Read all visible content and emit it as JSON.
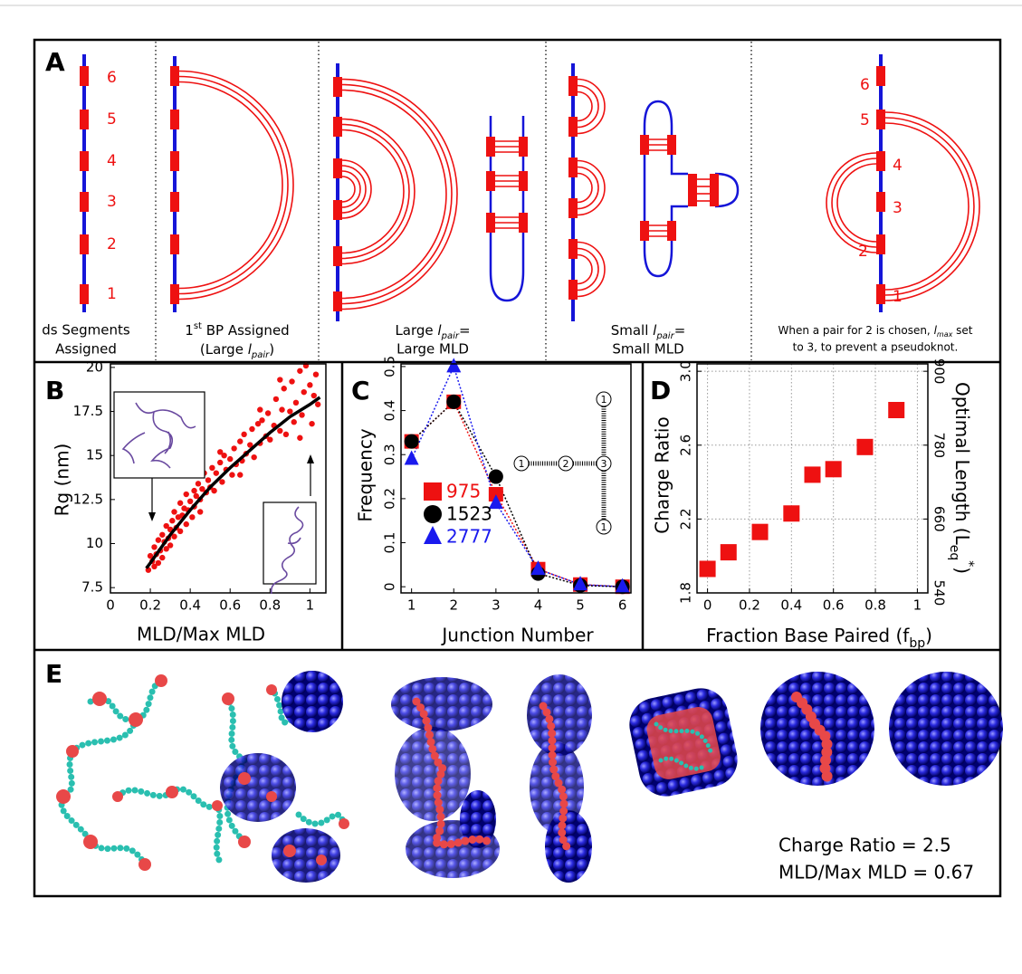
{
  "panel_a": {
    "label": "A",
    "segment_numbers": [
      "1",
      "2",
      "3",
      "4",
      "5",
      "6"
    ],
    "captions": [
      [
        "ds Segments",
        "Assigned"
      ],
      [
        [
          "1",
          "st",
          " BP Assigned"
        ],
        [
          "(Large ",
          "l",
          "pair",
          ")"
        ]
      ],
      [
        [
          "Large ",
          "l",
          "pair",
          "="
        ],
        "Large MLD"
      ],
      [
        [
          "Small ",
          "l",
          "pair",
          "="
        ],
        "Small MLD"
      ],
      [
        [
          "When a pair for 2 is chosen, ",
          "l",
          "max",
          " set"
        ],
        "to 3, to prevent a pseudoknot."
      ]
    ],
    "pseudoknot_numbers": [
      "1",
      "2",
      "3",
      "4",
      "5",
      "6"
    ]
  },
  "chart_data": [
    {
      "type": "scatter",
      "panel_label": "B",
      "xlabel": "MLD/Max MLD",
      "ylabel": "Rg (nm)",
      "xlim": [
        0,
        1.08
      ],
      "ylim": [
        7.2,
        20.2
      ],
      "xticks": [
        0,
        0.2,
        0.4,
        0.6,
        0.8,
        1
      ],
      "yticks": [
        7.5,
        10,
        12.5,
        15,
        17.5,
        20
      ],
      "series": [
        {
          "color": "#ee1111",
          "marker": "circle",
          "x": [
            0.19,
            0.2,
            0.21,
            0.22,
            0.22,
            0.23,
            0.24,
            0.24,
            0.25,
            0.26,
            0.26,
            0.27,
            0.28,
            0.28,
            0.29,
            0.3,
            0.3,
            0.31,
            0.32,
            0.32,
            0.33,
            0.34,
            0.35,
            0.35,
            0.36,
            0.37,
            0.38,
            0.38,
            0.39,
            0.4,
            0.41,
            0.42,
            0.42,
            0.43,
            0.44,
            0.45,
            0.46,
            0.47,
            0.48,
            0.49,
            0.5,
            0.51,
            0.52,
            0.53,
            0.55,
            0.56,
            0.57,
            0.58,
            0.6,
            0.61,
            0.62,
            0.63,
            0.65,
            0.66,
            0.67,
            0.68,
            0.7,
            0.71,
            0.72,
            0.74,
            0.75,
            0.76,
            0.78,
            0.79,
            0.8,
            0.82,
            0.83,
            0.85,
            0.86,
            0.87,
            0.88,
            0.9,
            0.91,
            0.92,
            0.93,
            0.95,
            0.96,
            0.97,
            0.98,
            1.0,
            1.01,
            1.02,
            1.03,
            1.04,
            0.45,
            0.55,
            0.65,
            0.75,
            0.85,
            0.95
          ],
          "values": [
            8.5,
            9.3,
            9.0,
            8.7,
            9.8,
            9.4,
            10.2,
            8.9,
            9.6,
            10.5,
            9.2,
            10.1,
            9.7,
            11.0,
            10.3,
            10.8,
            9.9,
            11.3,
            10.4,
            11.8,
            10.9,
            11.5,
            10.7,
            12.3,
            11.6,
            12.0,
            11.1,
            12.8,
            11.9,
            12.4,
            11.5,
            13.0,
            12.1,
            12.7,
            13.4,
            12.5,
            13.1,
            14.0,
            12.9,
            13.6,
            13.2,
            14.3,
            13.0,
            14.0,
            14.6,
            13.5,
            15.0,
            14.2,
            14.8,
            13.9,
            15.4,
            14.5,
            15.8,
            14.7,
            16.2,
            15.1,
            15.6,
            16.5,
            14.9,
            16.8,
            15.7,
            17.0,
            16.1,
            17.4,
            15.9,
            16.7,
            18.2,
            16.4,
            17.6,
            18.8,
            16.2,
            17.5,
            19.2,
            16.9,
            18.0,
            19.8,
            17.3,
            18.6,
            20.1,
            19.0,
            16.8,
            18.4,
            19.6,
            17.9,
            11.8,
            15.2,
            13.9,
            17.6,
            19.3,
            16.0
          ]
        },
        {
          "type": "line",
          "color": "#000000",
          "x": [
            0.18,
            0.2,
            0.3,
            0.4,
            0.5,
            0.6,
            0.7,
            0.8,
            0.9,
            1.0,
            1.05
          ],
          "values": [
            8.6,
            8.9,
            10.5,
            11.9,
            13.2,
            14.3,
            15.3,
            16.3,
            17.2,
            17.9,
            18.3
          ]
        }
      ]
    },
    {
      "type": "line",
      "panel_label": "C",
      "xlabel": "Junction Number",
      "ylabel": "Frequency",
      "xlim": [
        0.75,
        6.2
      ],
      "ylim": [
        -0.014,
        0.506
      ],
      "xticks": [
        1,
        2,
        3,
        4,
        5,
        6
      ],
      "yticks": [
        0,
        0.1,
        0.2,
        0.3,
        0.4,
        0.5
      ],
      "x": [
        1,
        2,
        3,
        4,
        5,
        6
      ],
      "legend": "right",
      "line_style": "dotted",
      "junction_labels": [
        "1",
        "2",
        "3",
        "1",
        "1"
      ],
      "series": [
        {
          "name": "975",
          "color": "#ee1111",
          "marker": "square",
          "values": [
            0.33,
            0.42,
            0.21,
            0.04,
            0.005,
            0.0
          ]
        },
        {
          "name": "1523",
          "color": "#000000",
          "marker": "circle",
          "values": [
            0.33,
            0.42,
            0.25,
            0.03,
            0.003,
            0.0
          ]
        },
        {
          "name": "2777",
          "color": "#1a1aee",
          "marker": "triangle",
          "values": [
            0.29,
            0.5,
            0.19,
            0.04,
            0.005,
            0.0
          ]
        }
      ]
    },
    {
      "type": "scatter",
      "panel_label": "D",
      "xlabel": [
        "Fraction Base Paired (f",
        "bp",
        ")"
      ],
      "ylabel": "Charge Ratio",
      "y2label": [
        "Optimal Length (L",
        "eq",
        "*",
        ")"
      ],
      "xlim": [
        -0.05,
        1.05
      ],
      "ylim": [
        1.8,
        3.04
      ],
      "y2lim": [
        540,
        912
      ],
      "xticks": [
        0,
        0.2,
        0.4,
        0.6,
        0.8,
        1
      ],
      "yticks": [
        1.8,
        2.2,
        2.6,
        {
          "value": 3,
          "label": "3.0"
        }
      ],
      "y2ticks": [
        540,
        660,
        780,
        900
      ],
      "grid": true,
      "series": [
        {
          "color": "#ee1111",
          "marker": "square",
          "x": [
            0,
            0.1,
            0.25,
            0.4,
            0.5,
            0.6,
            0.75,
            0.9
          ],
          "values": [
            1.93,
            2.02,
            2.13,
            2.23,
            2.44,
            2.47,
            2.59,
            2.79
          ]
        }
      ]
    }
  ],
  "panel_e": {
    "label": "E",
    "annotations": [
      "Charge Ratio = 2.5",
      "MLD/Max MLD = 0.67"
    ]
  }
}
